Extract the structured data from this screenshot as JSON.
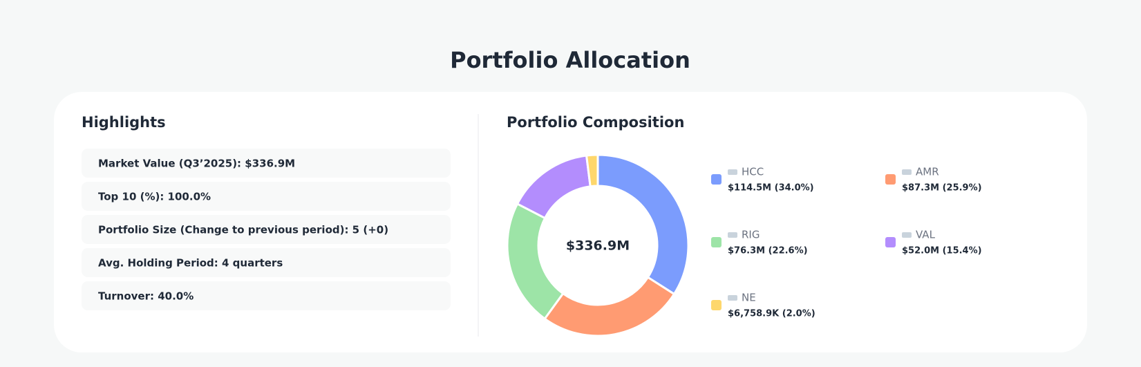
{
  "page": {
    "title": "Portfolio Allocation",
    "highlights": {
      "heading": "Highlights",
      "items": [
        "Market Value (Q3’2025): $336.9M",
        "Top 10 (%): 100.0%",
        "Portfolio Size (Change to previous period): 5 (+0)",
        "Avg. Holding Period: 4 quarters",
        "Turnover: 40.0%"
      ]
    }
  },
  "chart_data": {
    "type": "pie",
    "donut": true,
    "title": "Portfolio Composition",
    "center_label": "$336.9M",
    "categories": [
      "HCC",
      "AMR",
      "RIG",
      "VAL",
      "NE"
    ],
    "values": [
      34.0,
      25.9,
      22.6,
      15.4,
      2.0
    ],
    "value_labels": [
      "$114.5M (34.0%)",
      "$87.3M (25.9%)",
      "$76.3M (22.6%)",
      "$52.0M (15.4%)",
      "$6,758.9K (2.0%)"
    ],
    "colors": [
      "#7b9cfd",
      "#ff9b72",
      "#9de4a7",
      "#b38dfd",
      "#fed76c"
    ]
  }
}
